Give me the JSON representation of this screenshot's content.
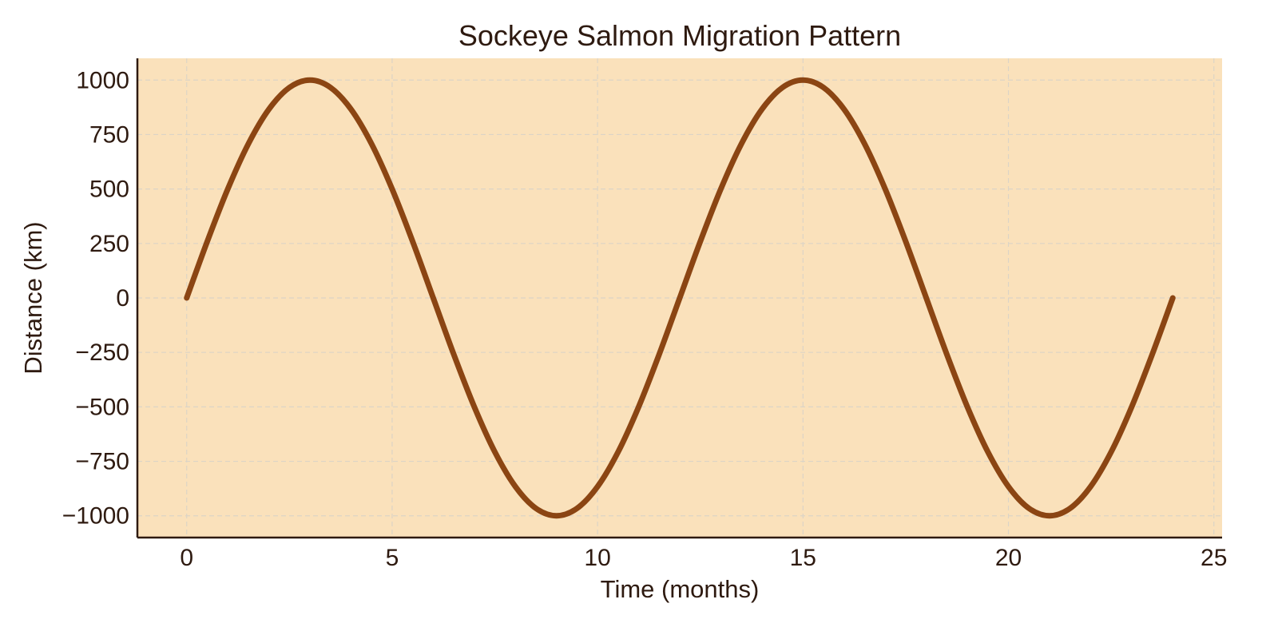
{
  "chart_data": {
    "type": "line",
    "title": "Sockeye Salmon Migration Pattern",
    "xlabel": "Time (months)",
    "ylabel": "Distance (km)",
    "xlim": [
      -1.2,
      25.2
    ],
    "ylim": [
      -1100,
      1100
    ],
    "x_ticks": [
      0,
      5,
      10,
      15,
      20,
      25
    ],
    "x_tick_labels": [
      "0",
      "5",
      "10",
      "15",
      "20",
      "25"
    ],
    "y_ticks": [
      1000,
      750,
      500,
      250,
      0,
      -250,
      -500,
      -750,
      -1000
    ],
    "y_tick_labels": [
      "1000",
      "750",
      "500",
      "250",
      "0",
      "−250",
      "−500",
      "−750",
      "−1000"
    ],
    "grid": true,
    "series": [
      {
        "color": "#8B4513",
        "x": [
          0,
          0.5,
          1,
          1.5,
          2,
          2.5,
          3,
          3.5,
          4,
          4.5,
          5,
          5.5,
          6,
          6.5,
          7,
          7.5,
          8,
          8.5,
          9,
          9.5,
          10,
          10.5,
          11,
          11.5,
          12,
          12.5,
          13,
          13.5,
          14,
          14.5,
          15,
          15.5,
          16,
          16.5,
          17,
          17.5,
          18,
          18.5,
          19,
          19.5,
          20,
          20.5,
          21,
          21.5,
          22,
          22.5,
          23,
          23.5,
          24
        ],
        "y": [
          0,
          259,
          500,
          707,
          866,
          966,
          1000,
          966,
          866,
          707,
          500,
          259,
          0,
          -259,
          -500,
          -707,
          -866,
          -966,
          -1000,
          -966,
          -866,
          -707,
          -500,
          -259,
          0,
          259,
          500,
          707,
          866,
          966,
          1000,
          966,
          866,
          707,
          500,
          259,
          0,
          -259,
          -500,
          -707,
          -866,
          -966,
          -1000,
          -966,
          -866,
          -707,
          -500,
          -259,
          0
        ]
      }
    ]
  },
  "colors": {
    "plot_background": "#FAE1BB",
    "grid": "#DCD4C6",
    "axis": "#2e1a10",
    "text": "#2e1a10"
  }
}
